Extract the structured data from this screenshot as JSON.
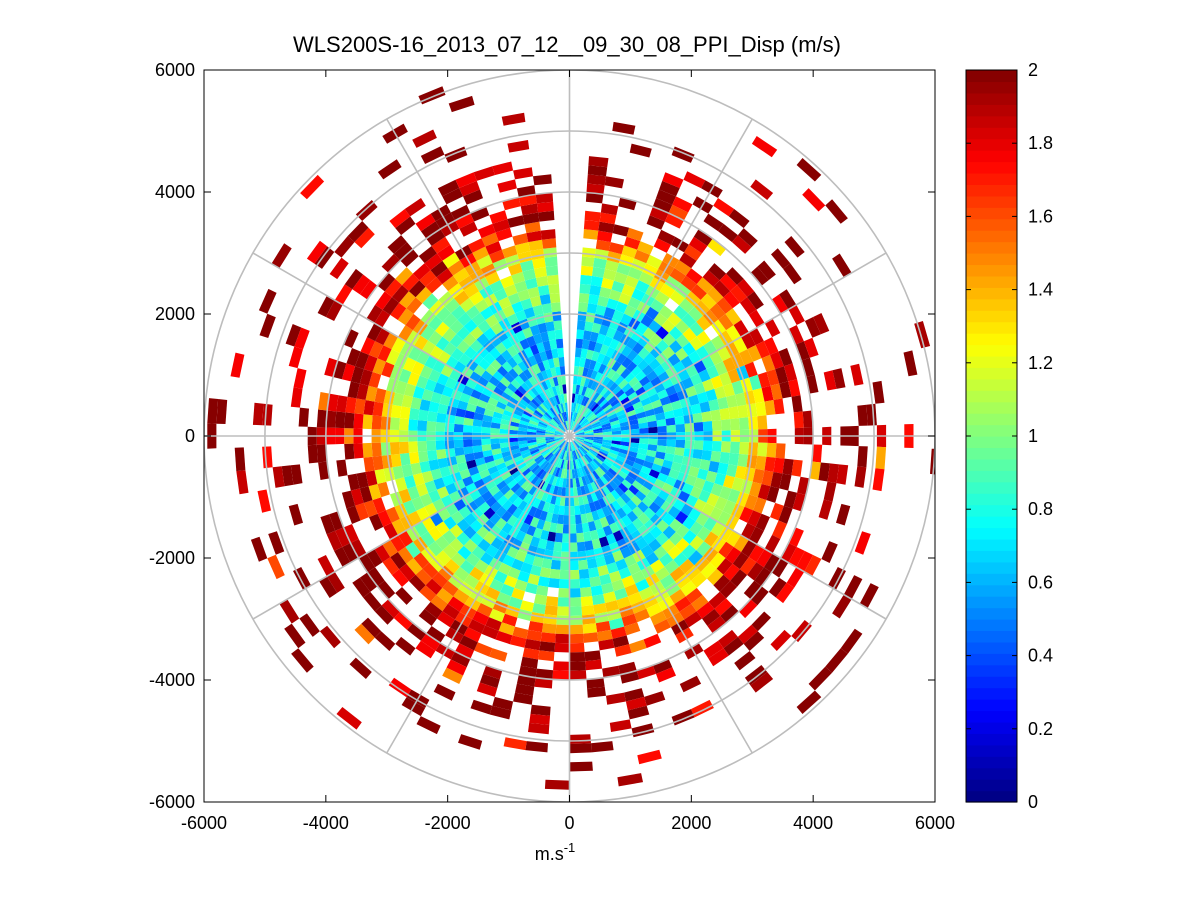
{
  "chart_data": {
    "type": "heatmap",
    "subtype": "polar-ppi",
    "title": "WLS200S-16_2013_07_12__09_30_08_PPI_Disp (m/s)",
    "xlabel": "m.s",
    "xlabel_superscript": "-1",
    "ylabel": "",
    "xlim": [
      -6000,
      6000
    ],
    "ylim": [
      -6000,
      6000
    ],
    "x_ticks": [
      -6000,
      -4000,
      -2000,
      0,
      2000,
      4000,
      6000
    ],
    "y_ticks": [
      -6000,
      -4000,
      -2000,
      0,
      2000,
      4000,
      6000
    ],
    "x_tick_labels": [
      "-6000",
      "-4000",
      "-2000",
      "0",
      "2000",
      "4000",
      "6000"
    ],
    "y_tick_labels": [
      "6000",
      "4000",
      "2000",
      "0",
      "-2000",
      "-4000",
      "-6000"
    ],
    "grid": true,
    "polar_grid": {
      "ring_radii": [
        1000,
        2000,
        3000,
        4000,
        5000,
        6000
      ],
      "spoke_angles_deg": [
        0,
        30,
        60,
        90,
        120,
        150,
        180,
        210,
        240,
        270,
        300,
        330
      ]
    },
    "colormap": "jet",
    "clim": [
      0,
      2
    ],
    "colorbar": {
      "ticks": [
        0,
        0.2,
        0.4,
        0.6,
        0.8,
        1,
        1.2,
        1.4,
        1.6,
        1.8,
        2
      ],
      "tick_labels": [
        "0",
        "0.2",
        "0.4",
        "0.6",
        "0.8",
        "1",
        "1.2",
        "1.4",
        "1.6",
        "1.8",
        "2"
      ],
      "levels": 64
    },
    "gate_size_m": 150,
    "beam_width_deg": 4,
    "data_radius_m": 6000,
    "blind_sector_deg": [
      -3,
      3
    ],
    "value_profile": {
      "radius_m": [
        0,
        1000,
        2000,
        2500,
        3000,
        3300,
        3600,
        4000,
        5000,
        6000
      ],
      "mean_value": [
        0.7,
        0.68,
        0.75,
        0.95,
        1.25,
        1.6,
        1.9,
        2.0,
        2.0,
        2.0
      ],
      "fill_fraction": [
        1.0,
        1.0,
        1.0,
        1.0,
        0.98,
        0.9,
        0.75,
        0.45,
        0.18,
        0.06
      ]
    }
  }
}
